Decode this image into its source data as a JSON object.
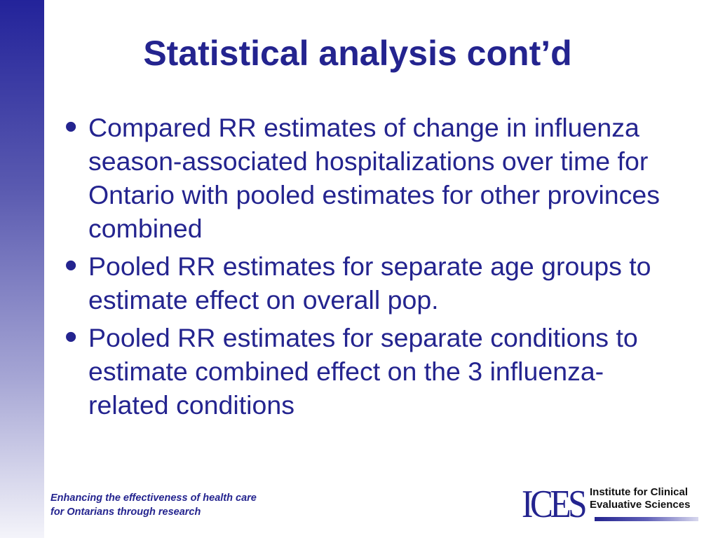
{
  "slide": {
    "title": "Statistical analysis cont’d",
    "bullets": [
      "Compared RR estimates of change in influenza season-associated hospitalizations over time for Ontario with pooled estimates for other provinces combined",
      "Pooled RR estimates for separate age groups to estimate effect on overall pop.",
      "Pooled RR estimates for separate conditions to estimate combined effect on the 3 influenza-related conditions"
    ],
    "bullet_glyph": "•"
  },
  "footer": {
    "tagline_line1": "Enhancing the effectiveness of health care",
    "tagline_line2": "for Ontarians through research",
    "logo": {
      "mark": "ICES",
      "name_line1": "Institute for Clinical",
      "name_line2": "Evaluative Sciences"
    }
  },
  "colors": {
    "text": "#24248f",
    "sidebar_top": "#23239a",
    "sidebar_bottom": "#f4f4fa"
  }
}
